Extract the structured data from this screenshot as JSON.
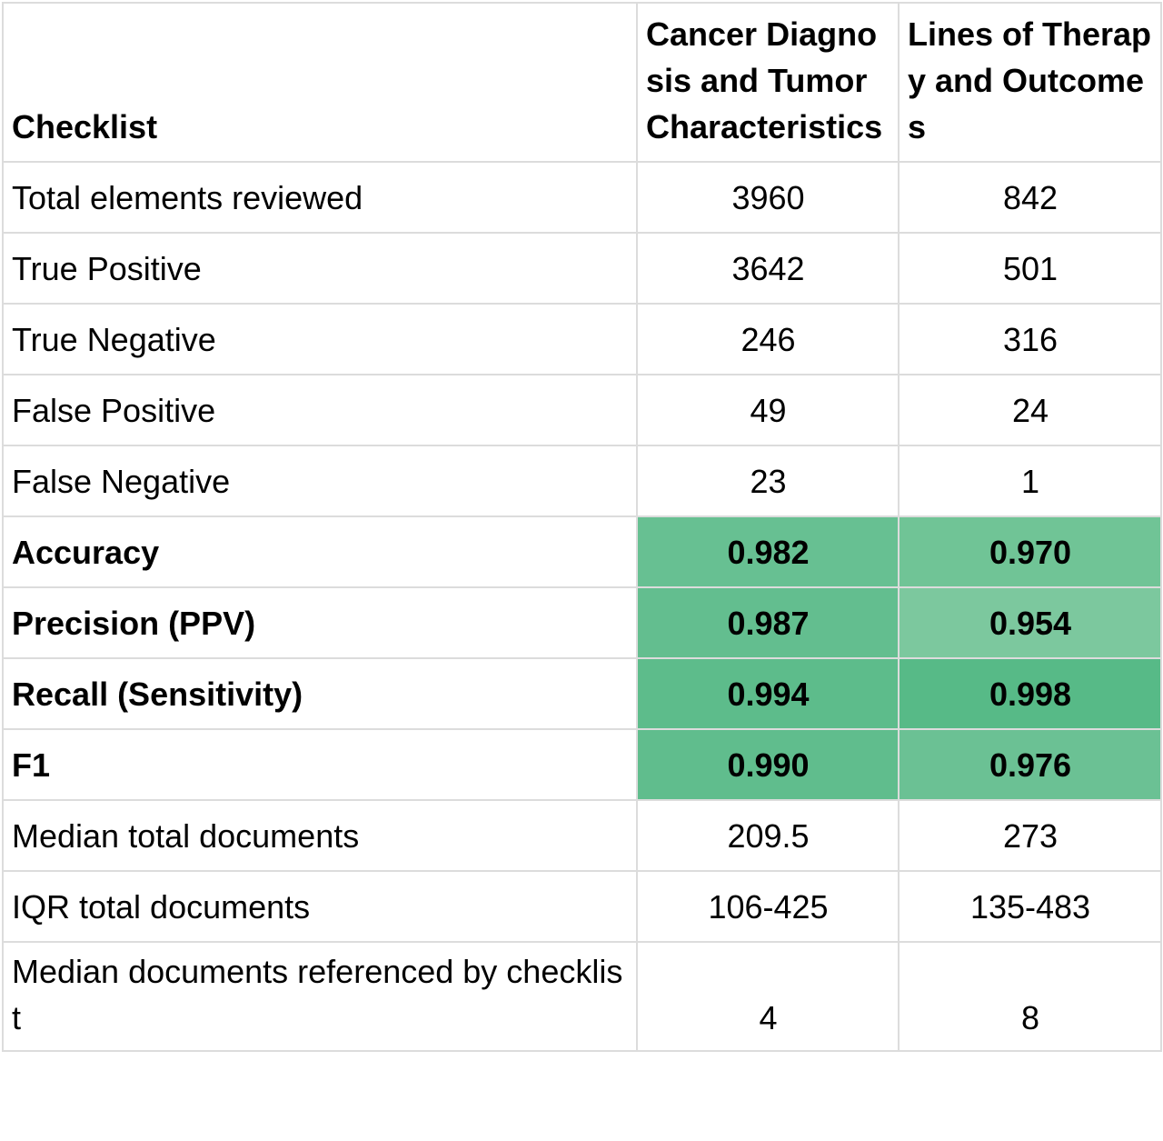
{
  "headers": [
    "Checklist",
    "Cancer Diagnosis and Tumor Characteristics",
    "Lines of Therapy and Outcomes"
  ],
  "rows": [
    {
      "label": "Total elements reviewed",
      "values": [
        "3960",
        "842"
      ]
    },
    {
      "label": "True Positive",
      "values": [
        "3642",
        "501"
      ]
    },
    {
      "label": "True Negative",
      "values": [
        "246",
        "316"
      ]
    },
    {
      "label": "False Positive",
      "values": [
        "49",
        "24"
      ]
    },
    {
      "label": "False Negative",
      "values": [
        "23",
        "1"
      ]
    },
    {
      "label": "Accuracy",
      "values": [
        "0.982",
        "0.970"
      ],
      "bold": true,
      "colors": [
        "#67c092",
        "#70c496"
      ]
    },
    {
      "label": "Precision (PPV)",
      "values": [
        "0.987",
        "0.954"
      ],
      "bold": true,
      "colors": [
        "#63be8f",
        "#7cc89e"
      ]
    },
    {
      "label": "Recall (Sensitivity)",
      "values": [
        "0.994",
        "0.998"
      ],
      "bold": true,
      "colors": [
        "#5dbc8b",
        "#57ba87"
      ]
    },
    {
      "label": "F1",
      "values": [
        "0.990",
        "0.976"
      ],
      "bold": true,
      "colors": [
        "#60bd8d",
        "#6bc194"
      ]
    },
    {
      "label": "Median total documents",
      "values": [
        "209.5",
        "273"
      ]
    },
    {
      "label": "IQR total documents",
      "values": [
        "106-425",
        "135-483"
      ]
    },
    {
      "label": "Median documents referenced by checklist",
      "values": [
        "4",
        "8"
      ]
    }
  ]
}
